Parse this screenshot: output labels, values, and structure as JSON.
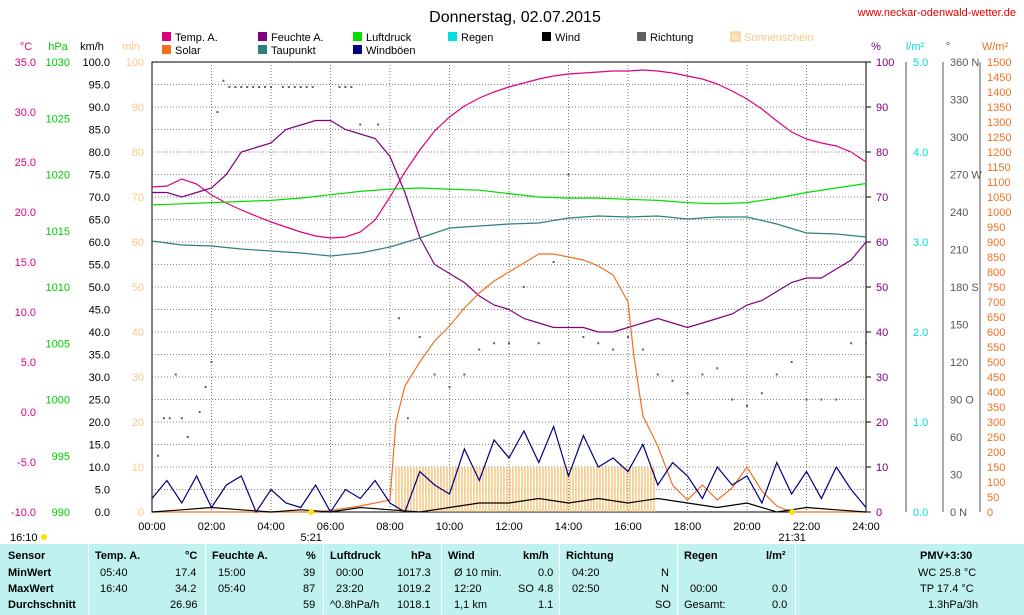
{
  "title": "Donnerstag, 02.07.2015",
  "website": "www.neckar-odenwald-wetter.de",
  "colors": {
    "temp": "#e0007f",
    "solar": "#f07020",
    "feuchte": "#800080",
    "taupunkt": "#2f7f7f",
    "luftdruck": "#00dd00",
    "windboeen": "#000080",
    "regen": "#00e0e0",
    "wind": "#000000",
    "richtung": "#606060",
    "sonnenschein": "#f6c070",
    "grid": "#333333"
  },
  "legend": [
    {
      "key": "temp",
      "label": "Temp. A."
    },
    {
      "key": "solar",
      "label": "Solar"
    },
    {
      "key": "feuchte",
      "label": "Feuchte A."
    },
    {
      "key": "taupunkt",
      "label": "Taupunkt"
    },
    {
      "key": "luftdruck",
      "label": "Luftdruck"
    },
    {
      "key": "windboeen",
      "label": "Windböen"
    },
    {
      "key": "regen",
      "label": "Regen"
    },
    {
      "key": "wind",
      "label": "Wind"
    },
    {
      "key": "richtung",
      "label": "Richtung"
    },
    {
      "key": "sonnenschein",
      "label": "Sonnenschein"
    }
  ],
  "axis_units": {
    "temp": "°C",
    "pressure": "hPa",
    "wind": "km/h",
    "sunshine": "min",
    "humidity": "%",
    "rain": "l/m²",
    "direction": "°",
    "solar": "W/m²"
  },
  "sun": {
    "sunrise": "5:21",
    "sunset": "21:31",
    "left_time": "16:10"
  },
  "chart_data": {
    "type": "line",
    "x_unit": "hours",
    "xlim": [
      0,
      24
    ],
    "x_ticks": [
      "00:00",
      "02:00",
      "04:00",
      "06:00",
      "08:00",
      "10:00",
      "12:00",
      "14:00",
      "16:00",
      "18:00",
      "20:00",
      "22:00",
      "24:00"
    ],
    "axes": {
      "temp_c": {
        "min": -10,
        "max": 35,
        "ticks": [
          "35.0",
          "30.0",
          "25.0",
          "20.0",
          "15.0",
          "10.0",
          "5.0",
          "0.0",
          "-5.0",
          "-10.0"
        ]
      },
      "pressure_hpa": {
        "min": 990,
        "max": 1030,
        "ticks": [
          "1030",
          "1025",
          "1020",
          "1015",
          "1010",
          "1005",
          "1000",
          "995",
          "990"
        ]
      },
      "wind_kmh": {
        "min": 0,
        "max": 100,
        "ticks": [
          "100.0",
          "95.0",
          "90.0",
          "85.0",
          "80.0",
          "75.0",
          "70.0",
          "65.0",
          "60.0",
          "55.0",
          "50.0",
          "45.0",
          "40.0",
          "35.0",
          "30.0",
          "25.0",
          "20.0",
          "15.0",
          "10.0",
          "5.0",
          "0.0"
        ]
      },
      "sunshine_min": {
        "min": 0,
        "max": 100,
        "ticks": [
          "100",
          "90",
          "80",
          "70",
          "60",
          "50",
          "40",
          "30",
          "20",
          "10",
          "0"
        ]
      },
      "humidity_pct": {
        "min": 0,
        "max": 100,
        "ticks": [
          "100",
          "90",
          "80",
          "70",
          "60",
          "50",
          "40",
          "30",
          "20",
          "10",
          "0"
        ]
      },
      "rain_lm2": {
        "min": 0,
        "max": 5,
        "ticks": [
          "5.0",
          "4.0",
          "3.0",
          "2.0",
          "1.0",
          "0.0"
        ]
      },
      "direction_deg": {
        "min": 0,
        "max": 360,
        "ticks": [
          "360 N",
          "330",
          "300",
          "270 W",
          "240",
          "210",
          "180 S",
          "150",
          "120",
          "90 O",
          "60",
          "30",
          "0 N"
        ]
      },
      "solar_wm2": {
        "min": 0,
        "max": 1500,
        "ticks": [
          "1500",
          "1450",
          "1400",
          "1350",
          "1300",
          "1250",
          "1200",
          "1150",
          "1100",
          "1050",
          "1000",
          "950",
          "900",
          "850",
          "800",
          "750",
          "700",
          "650",
          "600",
          "550",
          "500",
          "450",
          "400",
          "350",
          "300",
          "250",
          "200",
          "150",
          "100",
          "50",
          "0"
        ]
      }
    },
    "series": [
      {
        "name": "Temp. A.",
        "key": "temp",
        "axis": "temp_c",
        "x": [
          0,
          0.5,
          1,
          1.5,
          2,
          2.5,
          3,
          3.5,
          4,
          4.5,
          5,
          5.5,
          6,
          6.5,
          7,
          7.5,
          8,
          8.5,
          9,
          9.5,
          10,
          10.5,
          11,
          11.5,
          12,
          12.5,
          13,
          13.5,
          14,
          14.5,
          15,
          15.5,
          16,
          16.5,
          17,
          17.5,
          18,
          18.5,
          19,
          19.5,
          20,
          20.5,
          21,
          21.5,
          22,
          22.5,
          23,
          23.5,
          24
        ],
        "values": [
          22.5,
          22.6,
          23.3,
          22.8,
          21.7,
          20.9,
          20.2,
          19.6,
          19.0,
          18.5,
          18.0,
          17.6,
          17.4,
          17.5,
          18.0,
          19.2,
          21.5,
          24.0,
          26.2,
          28.1,
          29.5,
          30.6,
          31.4,
          32.0,
          32.5,
          32.9,
          33.3,
          33.6,
          33.8,
          33.9,
          34.0,
          34.1,
          34.1,
          34.2,
          34.1,
          33.9,
          33.6,
          33.3,
          32.8,
          32.1,
          31.3,
          30.3,
          29.1,
          28.0,
          27.3,
          26.9,
          26.6,
          26.0,
          25.0
        ]
      },
      {
        "name": "Feuchte A.",
        "key": "feuchte",
        "axis": "humidity_pct",
        "x": [
          0,
          0.5,
          1,
          1.5,
          2,
          2.5,
          3,
          3.5,
          4,
          4.5,
          5,
          5.5,
          6,
          6.5,
          7,
          7.5,
          8,
          8.5,
          9,
          9.5,
          10,
          10.5,
          11,
          11.5,
          12,
          12.5,
          13,
          13.5,
          14,
          14.5,
          15,
          15.5,
          16,
          16.5,
          17,
          17.5,
          18,
          18.5,
          19,
          19.5,
          20,
          20.5,
          21,
          21.5,
          22,
          22.5,
          23,
          23.5,
          24
        ],
        "values": [
          71,
          71,
          70,
          71,
          72,
          75,
          80,
          81,
          82,
          85,
          86,
          87,
          87,
          85,
          84,
          83,
          79,
          71,
          61,
          55,
          53,
          51,
          48,
          46,
          45,
          43,
          42,
          41,
          41,
          41,
          40,
          40,
          41,
          42,
          43,
          42,
          41,
          42,
          43,
          44,
          46,
          47,
          49,
          51,
          52,
          52,
          54,
          56,
          60
        ]
      },
      {
        "name": "Taupunkt",
        "key": "taupunkt",
        "axis": "temp_c",
        "x": [
          0,
          1,
          2,
          3,
          4,
          5,
          6,
          7,
          8,
          9,
          10,
          11,
          12,
          13,
          14,
          15,
          16,
          17,
          18,
          19,
          20,
          21,
          22,
          23,
          24
        ],
        "values": [
          17.1,
          16.7,
          16.6,
          16.3,
          16.1,
          15.9,
          15.6,
          15.9,
          16.5,
          17.4,
          18.4,
          18.6,
          18.8,
          18.9,
          19.4,
          19.6,
          19.5,
          19.6,
          19.3,
          19.5,
          19.5,
          18.8,
          17.9,
          17.8,
          17.5
        ]
      },
      {
        "name": "Luftdruck",
        "key": "luftdruck",
        "axis": "pressure_hpa",
        "x": [
          0,
          1,
          2,
          3,
          4,
          5,
          6,
          7,
          8,
          9,
          10,
          11,
          12,
          13,
          14,
          15,
          16,
          17,
          18,
          19,
          20,
          21,
          22,
          23,
          24
        ],
        "values": [
          1017.3,
          1017.4,
          1017.5,
          1017.6,
          1017.7,
          1017.9,
          1018.2,
          1018.5,
          1018.7,
          1018.8,
          1018.7,
          1018.6,
          1018.3,
          1018.0,
          1017.9,
          1017.9,
          1017.8,
          1017.7,
          1017.5,
          1017.4,
          1017.5,
          1017.9,
          1018.4,
          1018.8,
          1019.2
        ]
      },
      {
        "name": "Solar",
        "key": "solar",
        "axis": "solar_wm2",
        "x": [
          0,
          5.5,
          6,
          7,
          8,
          8.2,
          8.5,
          9,
          9.5,
          10,
          10.5,
          11,
          11.5,
          12,
          12.5,
          13,
          13.5,
          14,
          14.5,
          15,
          15.5,
          16,
          16.2,
          16.5,
          17,
          17.5,
          18,
          18.5,
          19,
          19.5,
          20,
          20.5,
          21,
          21.5,
          24
        ],
        "values": [
          0,
          0,
          5,
          20,
          40,
          300,
          420,
          500,
          570,
          620,
          680,
          730,
          770,
          800,
          830,
          860,
          860,
          850,
          840,
          820,
          790,
          700,
          520,
          320,
          220,
          90,
          40,
          90,
          40,
          80,
          150,
          70,
          20,
          0,
          0
        ]
      },
      {
        "name": "Windböen",
        "key": "windboeen",
        "axis": "wind_kmh",
        "x": [
          0,
          0.5,
          1,
          1.5,
          2,
          2.5,
          3,
          3.5,
          4,
          4.5,
          5,
          5.5,
          6,
          6.5,
          7,
          7.5,
          8,
          8.5,
          9,
          9.5,
          10,
          10.5,
          11,
          11.5,
          12,
          12.5,
          13,
          13.5,
          14,
          14.5,
          15,
          15.5,
          16,
          16.5,
          17,
          17.5,
          18,
          18.5,
          19,
          19.5,
          20,
          20.5,
          21,
          21.5,
          22,
          22.5,
          23,
          23.5,
          24
        ],
        "values": [
          3,
          7,
          2,
          8,
          1,
          6,
          8,
          0,
          5,
          2,
          1,
          6,
          0,
          5,
          3,
          7,
          2,
          0,
          9,
          6,
          4,
          14,
          7,
          16,
          12,
          18,
          11,
          19,
          8,
          17,
          10,
          12,
          9,
          15,
          6,
          11,
          8,
          3,
          10,
          6,
          8,
          2,
          11,
          4,
          9,
          3,
          10,
          5,
          1
        ]
      },
      {
        "name": "Wind",
        "key": "wind",
        "axis": "wind_kmh",
        "x": [
          0,
          1,
          2,
          3,
          4,
          5,
          6,
          7,
          8,
          9,
          10,
          11,
          12,
          13,
          14,
          15,
          16,
          17,
          18,
          19,
          20,
          21,
          22,
          23,
          24
        ],
        "values": [
          0,
          0.5,
          1,
          0.5,
          0,
          0.5,
          0,
          1,
          0.5,
          0,
          1,
          2,
          2,
          3,
          2,
          3,
          2,
          3,
          2,
          1,
          2,
          0,
          1,
          0.5,
          0
        ]
      },
      {
        "name": "Sonnenschein",
        "key": "sonnenschein",
        "axis": "sunshine_min",
        "x": [
          8.2,
          16.9
        ],
        "values": [
          10,
          10
        ]
      }
    ],
    "richtung_points": [
      {
        "x": 0.2,
        "y": 45
      },
      {
        "x": 0.4,
        "y": 75
      },
      {
        "x": 0.6,
        "y": 75
      },
      {
        "x": 0.8,
        "y": 110
      },
      {
        "x": 1.0,
        "y": 75
      },
      {
        "x": 1.2,
        "y": 60
      },
      {
        "x": 1.6,
        "y": 80
      },
      {
        "x": 1.8,
        "y": 100
      },
      {
        "x": 2.0,
        "y": 120
      },
      {
        "x": 2.2,
        "y": 320
      },
      {
        "x": 2.4,
        "y": 345
      },
      {
        "x": 2.6,
        "y": 340
      },
      {
        "x": 2.8,
        "y": 340
      },
      {
        "x": 3.0,
        "y": 340
      },
      {
        "x": 3.2,
        "y": 340
      },
      {
        "x": 3.4,
        "y": 340
      },
      {
        "x": 3.6,
        "y": 340
      },
      {
        "x": 3.8,
        "y": 340
      },
      {
        "x": 4.0,
        "y": 340
      },
      {
        "x": 4.4,
        "y": 340
      },
      {
        "x": 4.6,
        "y": 340
      },
      {
        "x": 4.8,
        "y": 340
      },
      {
        "x": 5.0,
        "y": 340
      },
      {
        "x": 5.2,
        "y": 340
      },
      {
        "x": 5.4,
        "y": 340
      },
      {
        "x": 6.3,
        "y": 340
      },
      {
        "x": 6.5,
        "y": 340
      },
      {
        "x": 6.7,
        "y": 340
      },
      {
        "x": 7.0,
        "y": 310
      },
      {
        "x": 7.6,
        "y": 310
      },
      {
        "x": 8.3,
        "y": 155
      },
      {
        "x": 8.6,
        "y": 75
      },
      {
        "x": 9.0,
        "y": 140
      },
      {
        "x": 9.5,
        "y": 110
      },
      {
        "x": 10.0,
        "y": 100
      },
      {
        "x": 10.5,
        "y": 110
      },
      {
        "x": 11.0,
        "y": 130
      },
      {
        "x": 11.5,
        "y": 135
      },
      {
        "x": 12.0,
        "y": 135
      },
      {
        "x": 12.5,
        "y": 180
      },
      {
        "x": 13.0,
        "y": 135
      },
      {
        "x": 13.5,
        "y": 200
      },
      {
        "x": 14.0,
        "y": 270
      },
      {
        "x": 14.5,
        "y": 140
      },
      {
        "x": 15.0,
        "y": 135
      },
      {
        "x": 15.5,
        "y": 130
      },
      {
        "x": 16.0,
        "y": 140
      },
      {
        "x": 16.5,
        "y": 130
      },
      {
        "x": 17.0,
        "y": 110
      },
      {
        "x": 17.5,
        "y": 105
      },
      {
        "x": 18.0,
        "y": 95
      },
      {
        "x": 18.5,
        "y": 110
      },
      {
        "x": 19.0,
        "y": 115
      },
      {
        "x": 19.5,
        "y": 90
      },
      {
        "x": 20.0,
        "y": 85
      },
      {
        "x": 20.5,
        "y": 95
      },
      {
        "x": 21.0,
        "y": 110
      },
      {
        "x": 21.5,
        "y": 120
      },
      {
        "x": 22.0,
        "y": 90
      },
      {
        "x": 22.5,
        "y": 90
      },
      {
        "x": 23.0,
        "y": 90
      },
      {
        "x": 23.5,
        "y": 135
      },
      {
        "x": 24.0,
        "y": 135
      }
    ]
  },
  "stats": {
    "sensor": {
      "header": "Sensor",
      "min": "MinWert",
      "max": "MaxWert",
      "avg": "Durchschnitt"
    },
    "temp": {
      "header": "Temp. A.",
      "unit": "°C",
      "min_time": "05:40",
      "min_val": "17.4",
      "max_time": "16:40",
      "max_val": "34.2",
      "avg": "26.96"
    },
    "feuchte": {
      "header": "Feuchte A.",
      "unit": "%",
      "min_time": "15:00",
      "min_val": "39",
      "max_time": "05:40",
      "max_val": "87",
      "avg": "59"
    },
    "luftdruck": {
      "header": "Luftdruck",
      "unit": "hPa",
      "min_time": "00:00",
      "min_val": "1017.3",
      "max_time": "23:20",
      "max_val": "1019.2",
      "trend": "^0.8hPa/h",
      "avg": "1018.1"
    },
    "wind": {
      "header": "Wind",
      "unit": "km/h",
      "r1_label": "Ø 10 min.",
      "r1_val": "0.0",
      "r2_label": "12:20",
      "r2_dir": "SO",
      "r2_val": "4.8",
      "r3_label": "1,1 km",
      "r3_val": "1.1"
    },
    "richtung": {
      "header": "Richtung",
      "r1_time": "04:20",
      "r1_dir": "N",
      "r2_time": "02:50",
      "r2_dir": "N",
      "r3_dir": "SO"
    },
    "regen": {
      "header": "Regen",
      "unit": "l/m²",
      "r2_time": "00:00",
      "r2_val": "0.0",
      "r3_label": "Gesamt:",
      "r3_val": "0.0"
    },
    "pmv": {
      "header": "PMV+3:30",
      "wc": "WC 25.8 °C",
      "tp": "TP 17.4 °C",
      "trend": "1.3hPa/3h"
    }
  }
}
